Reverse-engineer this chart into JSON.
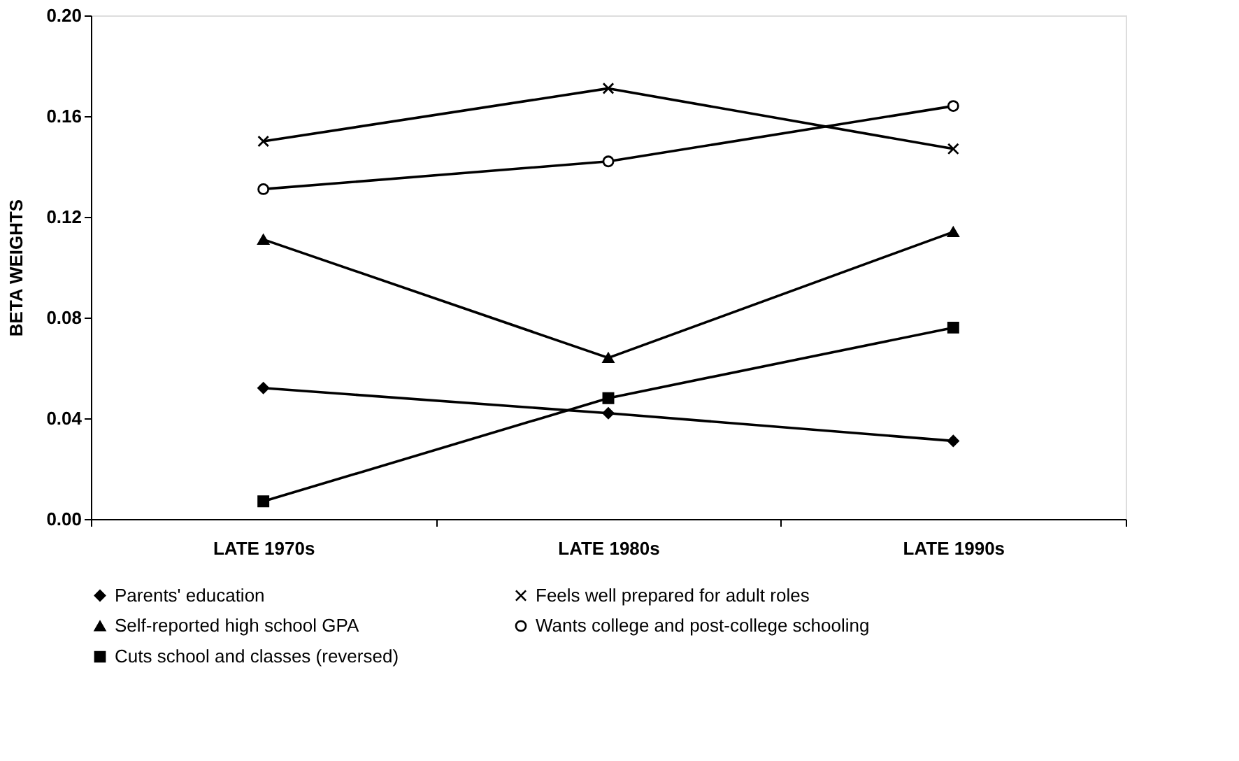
{
  "chart_data": {
    "type": "line",
    "ylabel": "BETA WEIGHTS",
    "categories": [
      "LATE 1970s",
      "LATE 1980s",
      "LATE 1990s"
    ],
    "series": [
      {
        "name": "Parents' education",
        "color": "#000000",
        "marker": "diamond",
        "values": [
          0.052,
          0.042,
          0.031
        ]
      },
      {
        "name": "Feels well prepared for adult roles",
        "color": "#000000",
        "marker": "cross",
        "values": [
          0.15,
          0.171,
          0.147
        ]
      },
      {
        "name": "Self-reported high school GPA",
        "color": "#000000",
        "marker": "triangle",
        "values": [
          0.111,
          0.064,
          0.114
        ]
      },
      {
        "name": "Wants college and post-college schooling",
        "color": "#000000",
        "marker": "circle",
        "values": [
          0.131,
          0.142,
          0.164
        ]
      },
      {
        "name": "Cuts school and classes (reversed)",
        "color": "#000000",
        "marker": "square",
        "values": [
          0.007,
          0.048,
          0.076
        ]
      }
    ],
    "ylim": [
      0,
      0.2
    ],
    "yticks": [
      {
        "value": 0,
        "label": "0.00"
      },
      {
        "value": 0.04,
        "label": "0.04"
      },
      {
        "value": 0.08,
        "label": "0.08"
      },
      {
        "value": 0.12,
        "label": "0.12"
      },
      {
        "value": 0.16,
        "label": "0.16"
      },
      {
        "value": 0.2,
        "label": "0.20"
      }
    ],
    "grid": false,
    "legend": "bottom",
    "line_style": "solid"
  }
}
